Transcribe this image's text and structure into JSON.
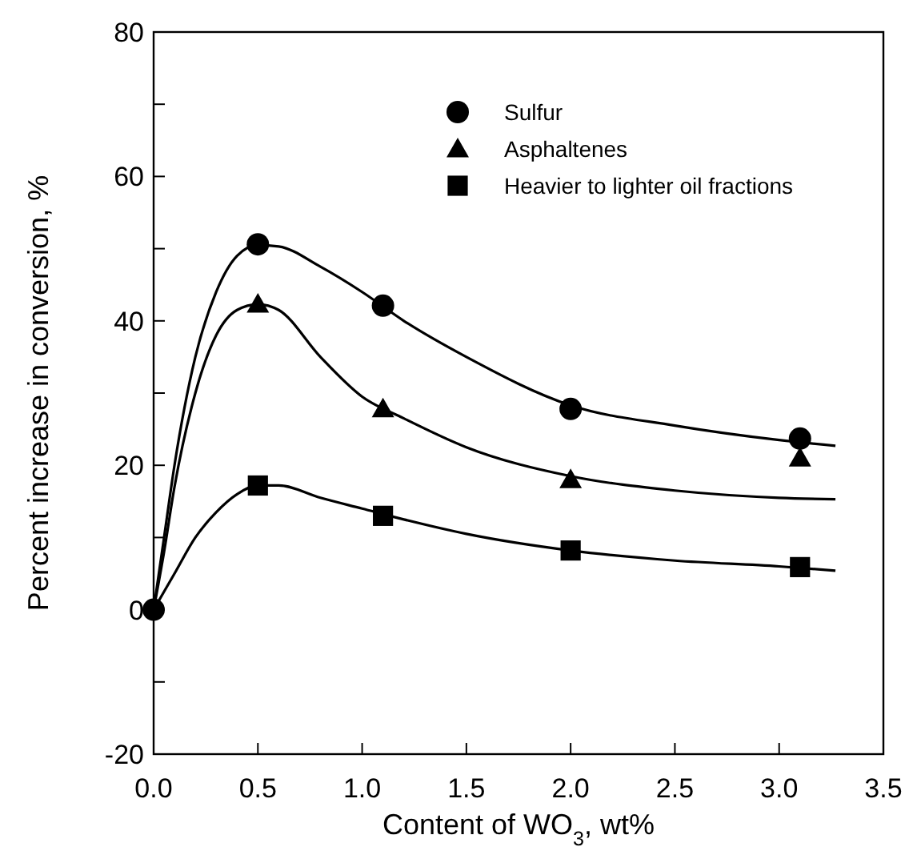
{
  "chart_data": {
    "type": "scatter",
    "xlabel": "Content of WO$_{3}$, wt%",
    "ylabel": "Percent increase in conversion, %",
    "xlim": [
      0,
      3.5
    ],
    "xticks": [
      {
        "value": 0,
        "label": "0.0"
      },
      {
        "value": 0.5,
        "label": "0.5"
      },
      {
        "value": 1,
        "label": "1.0"
      },
      {
        "value": 1.5,
        "label": "1.5"
      },
      {
        "value": 2,
        "label": "2.0"
      },
      {
        "value": 2.5,
        "label": "2.5"
      },
      {
        "value": 3,
        "label": "3.0"
      },
      {
        "value": 3.5,
        "label": "3.5"
      }
    ],
    "ylim": [
      -20,
      80
    ],
    "yticks": [
      -20,
      {
        "value": -10,
        "label": null
      },
      0,
      {
        "value": 10,
        "label": null
      },
      20,
      {
        "value": 30,
        "label": null
      },
      40,
      {
        "value": 50,
        "label": null
      },
      60,
      {
        "value": 70,
        "label": null
      },
      80
    ],
    "legend": "top right",
    "grid": false,
    "series": [
      {
        "name": "Sulfur",
        "type": "scatter",
        "marker": "circle",
        "color": "#000000",
        "x": [
          0,
          0.5,
          1.1,
          2.0,
          3.1
        ],
        "values": [
          0,
          50.6,
          42.1,
          27.8,
          23.7
        ]
      },
      {
        "name": "Asphaltenes",
        "type": "scatter",
        "marker": "triangle",
        "color": "#000000",
        "x": [
          0.5,
          1.1,
          2.0,
          3.1
        ],
        "values": [
          42.3,
          27.8,
          18,
          21
        ]
      },
      {
        "name": "Heavier to lighter oil fractions",
        "type": "scatter",
        "marker": "square",
        "color": "#000000",
        "x": [
          0.5,
          1.1,
          2.0,
          3.1
        ],
        "values": [
          17.2,
          13,
          8.2,
          5.9
        ]
      },
      {
        "type": "line",
        "color": "#000000",
        "x": [
          0,
          0.05,
          0.1,
          0.2,
          0.3,
          0.4,
          0.5,
          0.6,
          0.8,
          1.0,
          1.2,
          1.5,
          2.0,
          2.5,
          3.0,
          3.27
        ],
        "values": [
          0,
          10,
          20,
          35,
          44,
          49,
          50.5,
          50.3,
          47.5,
          44,
          40,
          35,
          28.3,
          25.5,
          23.5,
          22.7
        ]
      },
      {
        "type": "line",
        "color": "#000000",
        "x": [
          0,
          0.05,
          0.1,
          0.2,
          0.3,
          0.4,
          0.5,
          0.6,
          0.8,
          1.0,
          1.2,
          1.5,
          2.0,
          2.5,
          3.0,
          3.27
        ],
        "values": [
          0,
          8,
          17,
          30,
          38,
          41.5,
          42.3,
          41.5,
          35,
          29.5,
          26.5,
          22.5,
          18.5,
          16.5,
          15.5,
          15.3
        ]
      },
      {
        "type": "line",
        "color": "#000000",
        "x": [
          0,
          0.1,
          0.2,
          0.3,
          0.4,
          0.5,
          0.6,
          0.8,
          1.0,
          1.2,
          1.5,
          2.0,
          2.5,
          3.0,
          3.27
        ],
        "values": [
          0,
          5,
          10,
          13.5,
          16,
          17.2,
          17.2,
          15.5,
          14,
          12.5,
          10.5,
          8.2,
          6.8,
          6,
          5.4
        ]
      }
    ]
  }
}
